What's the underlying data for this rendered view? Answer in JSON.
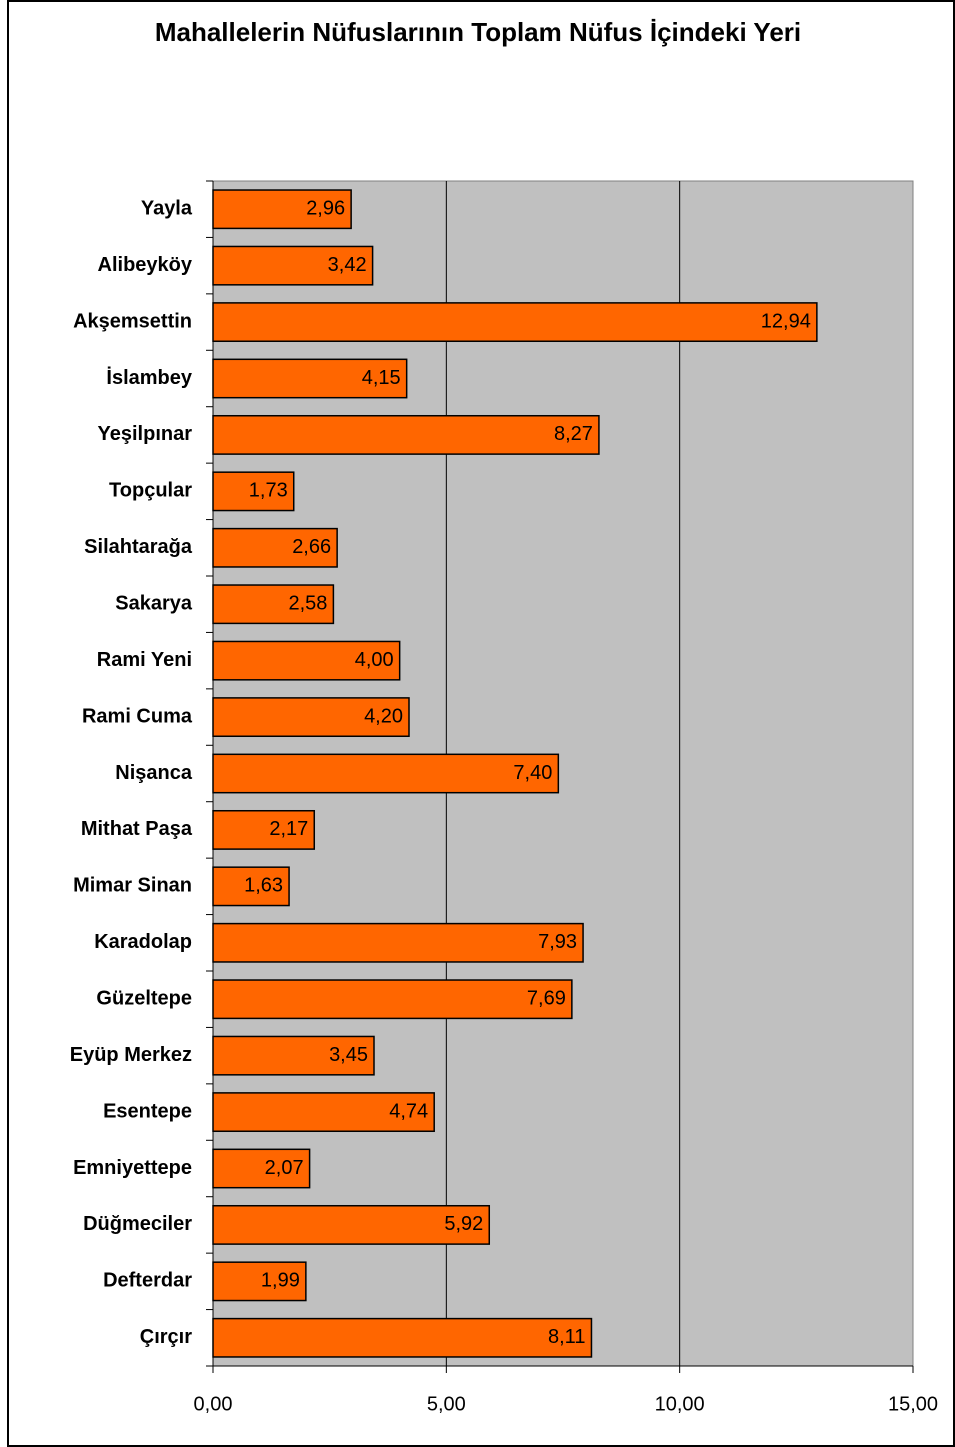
{
  "chart_data": {
    "type": "bar",
    "orientation": "horizontal",
    "title": "Mahallelerin Nüfuslarının Toplam Nüfus İçindeki Yeri",
    "categories": [
      "Yayla",
      "Alibeyköy",
      "Akşemsettin",
      "İslambey",
      "Yeşilpınar",
      "Topçular",
      "Silahtarağa",
      "Sakarya",
      "Rami Yeni",
      "Rami Cuma",
      "Nişanca",
      "Mithat Paşa",
      "Mimar Sinan",
      "Karadolap",
      "Güzeltepe",
      "Eyüp Merkez",
      "Esentepe",
      "Emniyettepe",
      "Düğmeciler",
      "Defterdar",
      "Çırçır"
    ],
    "values": [
      2.96,
      3.42,
      12.94,
      4.15,
      8.27,
      1.73,
      2.66,
      2.58,
      4.0,
      4.2,
      7.4,
      2.17,
      1.63,
      7.93,
      7.69,
      3.45,
      4.74,
      2.07,
      5.92,
      1.99,
      8.11
    ],
    "value_labels": [
      "2,96",
      "3,42",
      "12,94",
      "4,15",
      "8,27",
      "1,73",
      "2,66",
      "2,58",
      "4,00",
      "4,20",
      "7,40",
      "2,17",
      "1,63",
      "7,93",
      "7,69",
      "3,45",
      "4,74",
      "2,07",
      "5,92",
      "1,99",
      "8,11"
    ],
    "color": "#ff6600",
    "xlim": [
      0,
      15
    ],
    "xticks": [
      {
        "value": 0,
        "label": "0,00"
      },
      {
        "value": 5,
        "label": "5,00"
      },
      {
        "value": 10,
        "label": "10,00"
      },
      {
        "value": 15,
        "label": "15,00"
      }
    ],
    "grid": true
  }
}
